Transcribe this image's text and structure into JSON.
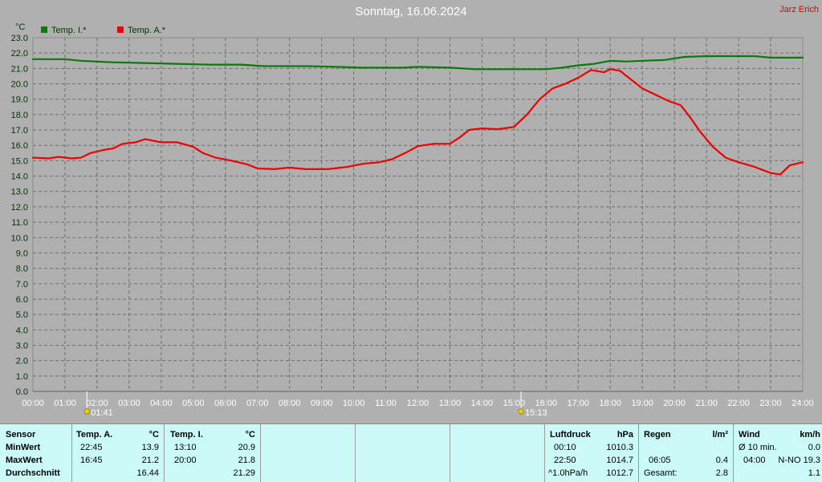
{
  "header": {
    "title": "Sonntag, 16.06.2024",
    "author": "Jarz Erich"
  },
  "colors": {
    "inside": "#0a7a0a",
    "outside": "#ee0000",
    "background": "#b0b0b0",
    "grid": "#707070",
    "table_bg": "#cbfbf8"
  },
  "chart_data": {
    "type": "line",
    "yunit": "°C",
    "ylim": [
      0,
      23
    ],
    "yticks": [
      "0.0",
      "1.0",
      "2.0",
      "3.0",
      "4.0",
      "5.0",
      "6.0",
      "7.0",
      "8.0",
      "9.0",
      "10.0",
      "11.0",
      "12.0",
      "13.0",
      "14.0",
      "15.0",
      "16.0",
      "17.0",
      "18.0",
      "19.0",
      "20.0",
      "21.0",
      "22.0",
      "23.0"
    ],
    "xticks": [
      "00:00",
      "01:00",
      "02:00",
      "03:00",
      "04:00",
      "05:00",
      "06:00",
      "07:00",
      "08:00",
      "09:00",
      "10:00",
      "11:00",
      "12:00",
      "13:00",
      "14:00",
      "15:00",
      "16:00",
      "17:00",
      "18:00",
      "19:00",
      "20:00",
      "21:00",
      "22:00",
      "23:00",
      "24:00"
    ],
    "xlim": [
      0,
      24
    ],
    "grid": true,
    "legend_position": "top-left",
    "markers": [
      {
        "label": "01:41",
        "x": 1.683
      },
      {
        "label": "15:13",
        "x": 15.217
      }
    ],
    "series": [
      {
        "name": "Temp. I.*",
        "color": "#0a7a0a",
        "points": [
          [
            0,
            21.6
          ],
          [
            1,
            21.6
          ],
          [
            1.5,
            21.5
          ],
          [
            2.5,
            21.4
          ],
          [
            3.5,
            21.35
          ],
          [
            4.5,
            21.3
          ],
          [
            5.5,
            21.25
          ],
          [
            6.5,
            21.25
          ],
          [
            7.2,
            21.15
          ],
          [
            8.5,
            21.15
          ],
          [
            9.5,
            21.1
          ],
          [
            10.2,
            21.05
          ],
          [
            11.5,
            21.05
          ],
          [
            12,
            21.1
          ],
          [
            13,
            21.05
          ],
          [
            13.8,
            20.95
          ],
          [
            15,
            20.95
          ],
          [
            16,
            20.95
          ],
          [
            16.5,
            21.05
          ],
          [
            17,
            21.2
          ],
          [
            17.5,
            21.3
          ],
          [
            18,
            21.5
          ],
          [
            18.5,
            21.45
          ],
          [
            19,
            21.5
          ],
          [
            19.7,
            21.55
          ],
          [
            20.3,
            21.75
          ],
          [
            21,
            21.8
          ],
          [
            22,
            21.8
          ],
          [
            22.5,
            21.8
          ],
          [
            23,
            21.7
          ],
          [
            24,
            21.7
          ]
        ]
      },
      {
        "name": "Temp. A.*",
        "color": "#ee0000",
        "points": [
          [
            0,
            15.2
          ],
          [
            0.5,
            15.15
          ],
          [
            0.8,
            15.25
          ],
          [
            1.2,
            15.15
          ],
          [
            1.5,
            15.2
          ],
          [
            1.8,
            15.5
          ],
          [
            2.2,
            15.7
          ],
          [
            2.5,
            15.8
          ],
          [
            2.8,
            16.1
          ],
          [
            3.2,
            16.2
          ],
          [
            3.5,
            16.4
          ],
          [
            4,
            16.2
          ],
          [
            4.5,
            16.2
          ],
          [
            5,
            15.9
          ],
          [
            5.3,
            15.5
          ],
          [
            5.7,
            15.2
          ],
          [
            6.2,
            15.0
          ],
          [
            6.7,
            14.75
          ],
          [
            7,
            14.5
          ],
          [
            7.5,
            14.45
          ],
          [
            8,
            14.55
          ],
          [
            8.5,
            14.45
          ],
          [
            9.2,
            14.45
          ],
          [
            9.8,
            14.6
          ],
          [
            10.3,
            14.8
          ],
          [
            10.8,
            14.9
          ],
          [
            11.2,
            15.1
          ],
          [
            11.7,
            15.6
          ],
          [
            12,
            15.95
          ],
          [
            12.5,
            16.1
          ],
          [
            13,
            16.1
          ],
          [
            13.3,
            16.5
          ],
          [
            13.6,
            17.0
          ],
          [
            14,
            17.1
          ],
          [
            14.5,
            17.05
          ],
          [
            15,
            17.2
          ],
          [
            15.4,
            18.0
          ],
          [
            15.8,
            19.0
          ],
          [
            16.2,
            19.7
          ],
          [
            16.6,
            20.0
          ],
          [
            17,
            20.4
          ],
          [
            17.4,
            20.9
          ],
          [
            17.8,
            20.75
          ],
          [
            18,
            20.95
          ],
          [
            18.3,
            20.85
          ],
          [
            18.7,
            20.2
          ],
          [
            19,
            19.7
          ],
          [
            19.5,
            19.2
          ],
          [
            19.8,
            18.9
          ],
          [
            20.2,
            18.6
          ],
          [
            20.5,
            17.8
          ],
          [
            20.8,
            16.9
          ],
          [
            21.2,
            15.9
          ],
          [
            21.6,
            15.2
          ],
          [
            22,
            14.9
          ],
          [
            22.5,
            14.6
          ],
          [
            23,
            14.2
          ],
          [
            23.3,
            14.1
          ],
          [
            23.6,
            14.7
          ],
          [
            24,
            14.9
          ]
        ]
      }
    ]
  },
  "stats": {
    "sensor": {
      "head": "Sensor",
      "min": "MinWert",
      "max": "MaxWert",
      "avg": "Durchschnitt"
    },
    "temp_a": {
      "head": "Temp. A.",
      "unit": "°C",
      "min_time": "22:45",
      "min_val": "13.9",
      "max_time": "16:45",
      "max_val": "21.2",
      "avg": "16.44"
    },
    "temp_i": {
      "head": "Temp. I.",
      "unit": "°C",
      "min_time": "13:10",
      "min_val": "20.9",
      "max_time": "20:00",
      "max_val": "21.8",
      "avg": "21.29"
    },
    "pressure": {
      "head": "Luftdruck",
      "unit": "hPa",
      "min_time": "00:10",
      "min_val": "1010.3",
      "max_time": "22:50",
      "max_val": "1014.7",
      "trend_label": "^1.0hPa/h",
      "avg": "1012.7"
    },
    "rain": {
      "head": "Regen",
      "unit": "l/m²",
      "max_time": "06:05",
      "max_val": "0.4",
      "total_label": "Gesamt:",
      "total": "2.8"
    },
    "wind": {
      "head": "Wind",
      "unit": "km/h",
      "avg_label": "Ø 10 min.",
      "avg_val": "0.0",
      "max_time": "04:00",
      "max_val": "N-NO 19.3",
      "avg": "1.1"
    }
  }
}
